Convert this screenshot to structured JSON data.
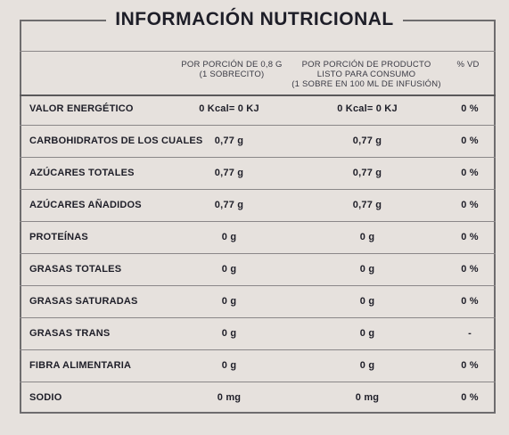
{
  "title": "INFORMACIÓN NUTRICIONAL",
  "columns": {
    "per_portion": [
      "POR PORCIÓN DE 0,8 G",
      "(1 SOBRECITO)"
    ],
    "per_product": [
      "POR PORCIÓN DE PRODUCTO",
      "LISTO PARA CONSUMO",
      "(1 SOBRE EN 100 ML DE INFUSIÓN)"
    ],
    "vd": "% VD"
  },
  "rows": [
    {
      "name": "VALOR ENERGÉTICO",
      "portion": "0 Kcal= 0 KJ",
      "product": "0 Kcal= 0 KJ",
      "vd": "0 %"
    },
    {
      "name": "CARBOHIDRATOS DE LOS CUALES",
      "portion": "0,77 g",
      "product": "0,77 g",
      "vd": "0 %"
    },
    {
      "name": "AZÚCARES TOTALES",
      "portion": "0,77 g",
      "product": "0,77 g",
      "vd": "0 %"
    },
    {
      "name": "AZÚCARES AÑADIDOS",
      "portion": "0,77 g",
      "product": "0,77 g",
      "vd": "0 %"
    },
    {
      "name": "PROTEÍNAS",
      "portion": "0 g",
      "product": "0 g",
      "vd": "0 %"
    },
    {
      "name": "GRASAS TOTALES",
      "portion": "0 g",
      "product": "0 g",
      "vd": "0 %"
    },
    {
      "name": "GRASAS SATURADAS",
      "portion": "0 g",
      "product": "0 g",
      "vd": "0 %"
    },
    {
      "name": "GRASAS TRANS",
      "portion": "0 g",
      "product": "0 g",
      "vd": "-"
    },
    {
      "name": "FIBRA ALIMENTARIA",
      "portion": "0 g",
      "product": "0 g",
      "vd": "0 %"
    },
    {
      "name": "SODIO",
      "portion": "0 mg",
      "product": "0 mg",
      "vd": "0 %"
    }
  ]
}
